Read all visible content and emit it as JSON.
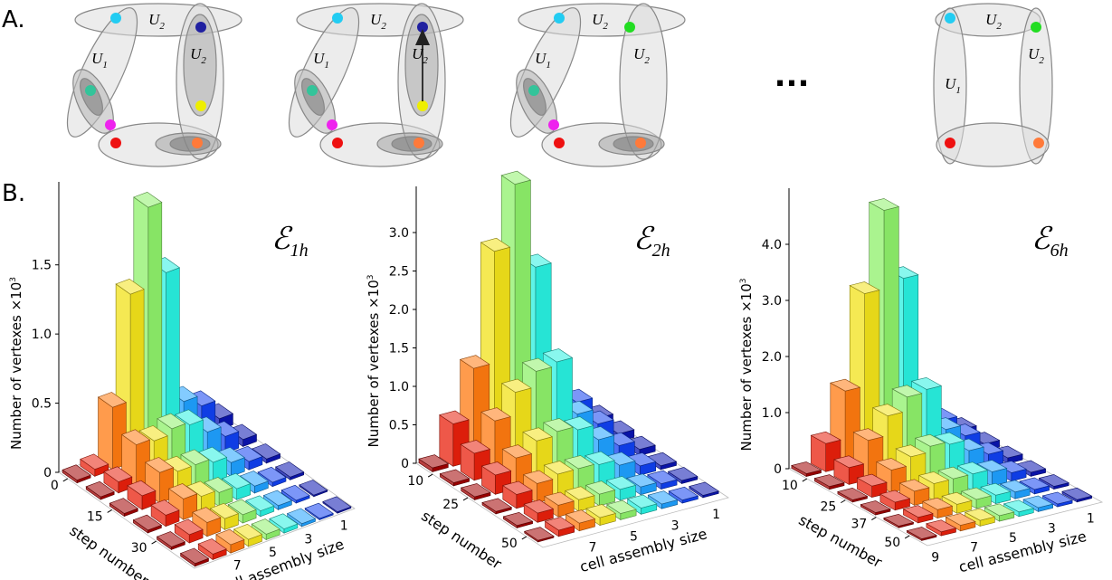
{
  "panel_labels": [
    "A.",
    "B."
  ],
  "panel_a": {
    "diagrams": [
      {
        "labels": [
          {
            "letter": "U",
            "sub": "2"
          },
          {
            "letter": "U",
            "sub": "1"
          },
          {
            "letter": "U",
            "sub": "2"
          }
        ]
      },
      {
        "labels": [
          {
            "letter": "U",
            "sub": "2"
          },
          {
            "letter": "U",
            "sub": "1"
          },
          {
            "letter": "U",
            "sub": "2"
          }
        ]
      },
      {
        "labels": [
          {
            "letter": "U",
            "sub": "2"
          },
          {
            "letter": "U",
            "sub": "1"
          },
          {
            "letter": "U",
            "sub": "2"
          }
        ]
      },
      {
        "labels": [
          {
            "letter": "U",
            "sub": "2"
          },
          {
            "letter": "U",
            "sub": "1"
          },
          {
            "letter": "U",
            "sub": "2"
          }
        ]
      }
    ],
    "ellipsis": "..."
  },
  "chart_data": [
    {
      "type": "bar3d",
      "symbol": "ℰ",
      "subscript": "1h",
      "ylabel": "Number of vertexes ×10",
      "ylabel_sup": "3",
      "xlabel": "step number",
      "zlabel": "cell assembly size",
      "ylim": [
        0,
        2.1
      ],
      "yticks": [
        0,
        0.5,
        {
          "value": 1,
          "label": "1.0"
        },
        1.5
      ],
      "xlim": [
        -3,
        43
      ],
      "xticks": [
        0,
        15,
        30
      ],
      "x": [
        0,
        8,
        16,
        24,
        32,
        40
      ],
      "categories": [
        null,
        null,
        7,
        null,
        5,
        null,
        3,
        null,
        1
      ],
      "colors": [
        "#a00000",
        "#e8200c",
        "#ff7a10",
        "#f2e21a",
        "#8ef06a",
        "#28f0e0",
        "#1ea0ff",
        "#1040f0",
        "#0a14b0"
      ],
      "values": [
        [
          0.02,
          0.05,
          0.45,
          1.22,
          1.8,
          1.28,
          0.3,
          0.22,
          0.08
        ],
        [
          0.02,
          0.08,
          0.3,
          0.28,
          0.32,
          0.3,
          0.2,
          0.12,
          0.05
        ],
        [
          0.02,
          0.1,
          0.22,
          0.18,
          0.18,
          0.15,
          0.1,
          0.06,
          0.03
        ],
        [
          0.02,
          0.08,
          0.15,
          0.12,
          0.1,
          0.08,
          0.05,
          0.03,
          0.02
        ],
        [
          0.02,
          0.06,
          0.1,
          0.08,
          0.06,
          0.04,
          0.03,
          0.02,
          0.01
        ],
        [
          0.02,
          0.04,
          0.06,
          0.05,
          0.04,
          0.03,
          0.02,
          0.01,
          0.01
        ]
      ]
    },
    {
      "type": "bar3d",
      "symbol": "ℰ",
      "subscript": "2h",
      "ylabel": "Number of vertexes ×10",
      "ylabel_sup": "3",
      "xlabel": "step number",
      "zlabel": "cell assembly size",
      "ylim": [
        0,
        3.6
      ],
      "yticks": [
        0,
        0.5,
        {
          "value": 1,
          "label": "1.0"
        },
        1.5,
        {
          "value": 2,
          "label": "2.0"
        },
        2.5,
        {
          "value": 3,
          "label": "3.0"
        }
      ],
      "xlim": [
        3,
        57
      ],
      "xticks": [
        10,
        25,
        50
      ],
      "x": [
        6,
        15,
        24,
        33,
        42,
        51
      ],
      "categories": [
        null,
        null,
        7,
        null,
        5,
        null,
        3,
        null,
        1
      ],
      "colors": [
        "#a00000",
        "#e8200c",
        "#ff7a10",
        "#f2e21a",
        "#8ef06a",
        "#28f0e0",
        "#1ea0ff",
        "#1040f0",
        "#0a14b0"
      ],
      "values": [
        [
          0.05,
          0.55,
          1.2,
          2.65,
          3.45,
          2.3,
          0.55,
          0.4,
          0.12
        ],
        [
          0.04,
          0.35,
          0.7,
          1.0,
          1.2,
          1.25,
          0.5,
          0.3,
          0.1
        ],
        [
          0.04,
          0.25,
          0.4,
          0.55,
          0.6,
          0.55,
          0.35,
          0.2,
          0.08
        ],
        [
          0.03,
          0.18,
          0.25,
          0.3,
          0.3,
          0.28,
          0.2,
          0.12,
          0.05
        ],
        [
          0.03,
          0.12,
          0.15,
          0.15,
          0.15,
          0.14,
          0.1,
          0.07,
          0.04
        ],
        [
          0.02,
          0.08,
          0.1,
          0.1,
          0.08,
          0.08,
          0.06,
          0.04,
          0.03
        ]
      ]
    },
    {
      "type": "bar3d",
      "symbol": "ℰ",
      "subscript": "6h",
      "ylabel": "Number of vertexes ×10",
      "ylabel_sup": "3",
      "xlabel": "step number",
      "zlabel": "cell assembly size",
      "ylim": [
        0,
        5.0
      ],
      "yticks": [
        0,
        {
          "value": 1,
          "label": "1.0"
        },
        {
          "value": 2,
          "label": "2.0"
        },
        {
          "value": 3,
          "label": "3.0"
        },
        {
          "value": 4,
          "label": "4.0"
        }
      ],
      "xlim": [
        3,
        57
      ],
      "xticks": [
        10,
        25,
        37,
        50
      ],
      "x": [
        6,
        15,
        24,
        33,
        42,
        51
      ],
      "categories": [
        9,
        null,
        7,
        null,
        5,
        null,
        3,
        null,
        1
      ],
      "colors": [
        "#a00000",
        "#e8200c",
        "#ff7a10",
        "#f2e21a",
        "#8ef06a",
        "#28f0e0",
        "#1ea0ff",
        "#1040f0",
        "#0a14b0"
      ],
      "values": [
        [
          0.05,
          0.5,
          1.35,
          3.0,
          4.4,
          3.1,
          0.55,
          0.4,
          0.15
        ],
        [
          0.05,
          0.3,
          0.7,
          1.05,
          1.3,
          1.35,
          0.55,
          0.35,
          0.12
        ],
        [
          0.04,
          0.2,
          0.4,
          0.55,
          0.65,
          0.6,
          0.4,
          0.25,
          0.1
        ],
        [
          0.04,
          0.14,
          0.25,
          0.3,
          0.3,
          0.3,
          0.25,
          0.15,
          0.07
        ],
        [
          0.03,
          0.1,
          0.15,
          0.16,
          0.16,
          0.15,
          0.12,
          0.08,
          0.05
        ],
        [
          0.03,
          0.07,
          0.1,
          0.1,
          0.1,
          0.08,
          0.07,
          0.05,
          0.04
        ]
      ]
    }
  ]
}
